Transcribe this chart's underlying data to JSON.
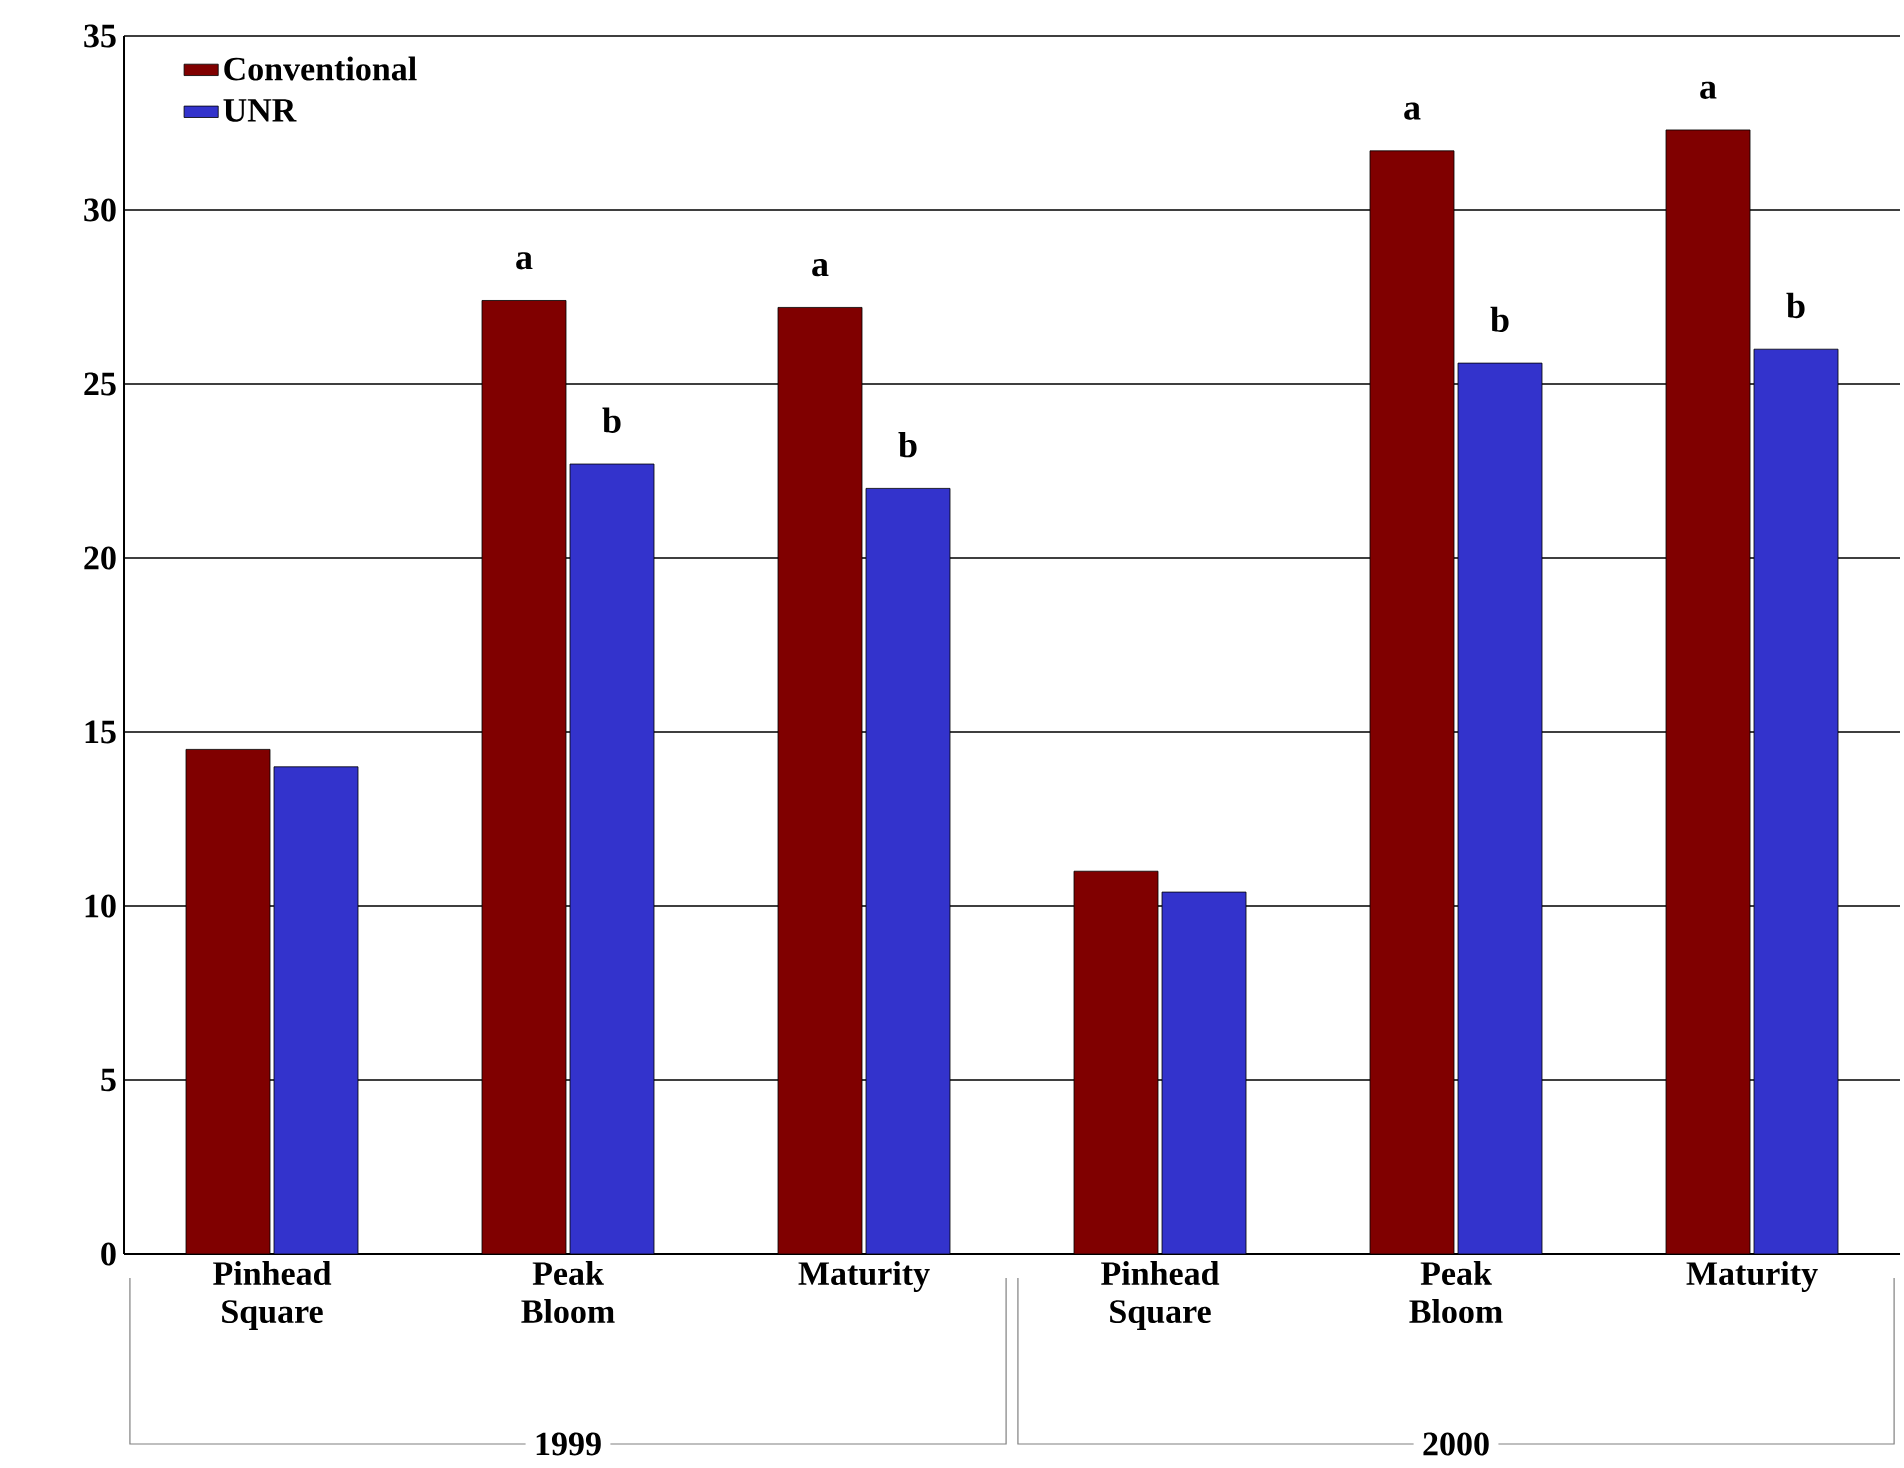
{
  "chart_data": {
    "type": "bar",
    "categories": [
      "Pinhead Square",
      "Peak Bloom",
      "Maturity",
      "Pinhead Square",
      "Peak Bloom",
      "Maturity"
    ],
    "series": [
      {
        "name": "Conventional",
        "color": "#800000",
        "values": [
          14.5,
          27.4,
          27.2,
          11.0,
          31.7,
          32.3
        ],
        "value_labels": [
          null,
          "a",
          "a",
          null,
          "a",
          "a"
        ]
      },
      {
        "name": "UNR",
        "color": "#3333cc",
        "values": [
          14.0,
          22.7,
          22.0,
          10.4,
          25.6,
          26.0
        ],
        "value_labels": [
          null,
          "b",
          "b",
          null,
          "b",
          "b"
        ]
      }
    ],
    "annotations": [
      "1999",
      "2000"
    ],
    "ylim": [
      0,
      35
    ],
    "yticks": [
      0,
      5,
      10,
      15,
      20,
      25,
      30,
      35
    ],
    "grid": "y",
    "legend": "top left"
  }
}
